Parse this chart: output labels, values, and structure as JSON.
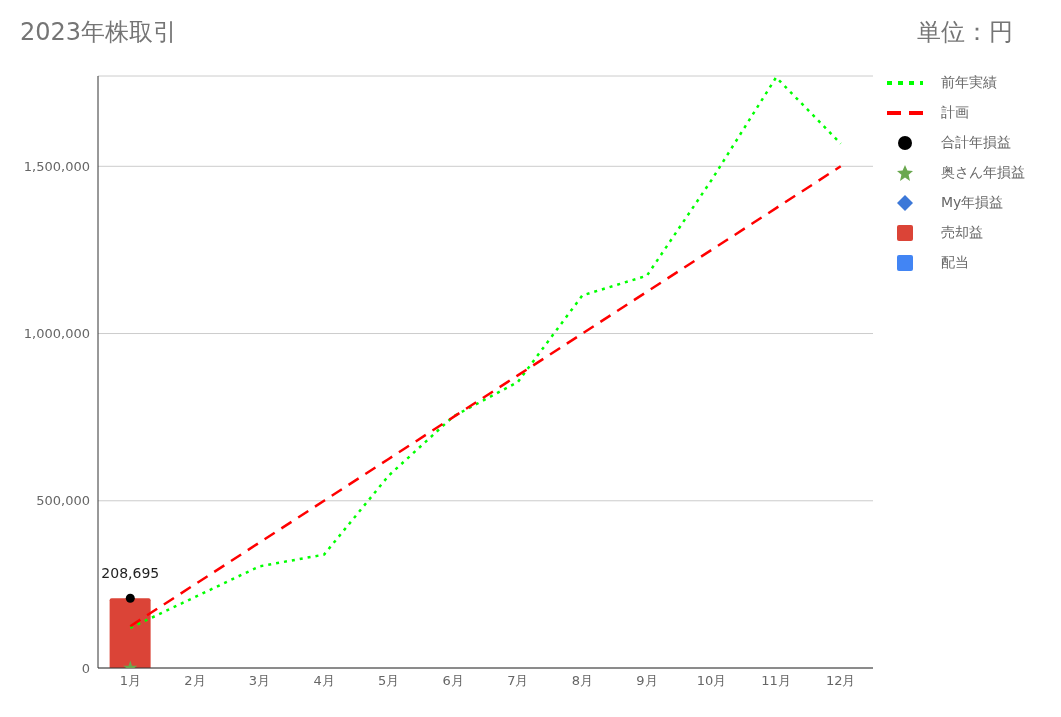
{
  "chart_data": {
    "type": "bar",
    "title": "2023年株取引",
    "annotations": [
      "単位：円"
    ],
    "categories": [
      "1月",
      "2月",
      "3月",
      "4月",
      "5月",
      "6月",
      "7月",
      "8月",
      "9月",
      "10月",
      "11月",
      "12月"
    ],
    "series": [
      {
        "name": "前年実績",
        "type": "line",
        "color": "#00ff00",
        "line_style": "dotted",
        "marker": "none",
        "values": [
          120000,
          212000,
          304000,
          339000,
          575000,
          752000,
          855000,
          1114000,
          1173000,
          1459000,
          1766000,
          1568000
        ]
      },
      {
        "name": "計画",
        "type": "line",
        "color": "#ff0000",
        "line_style": "dashed",
        "marker": "none",
        "values": [
          125000,
          250000,
          375000,
          500000,
          625000,
          750000,
          875000,
          1000000,
          1125000,
          1250000,
          1375000,
          1500000
        ]
      },
      {
        "name": "合計年損益",
        "type": "scatter",
        "color": "#000000",
        "marker": "circle",
        "values": [
          208695,
          null,
          null,
          null,
          null,
          null,
          null,
          null,
          null,
          null,
          null,
          null
        ],
        "value_labels": [
          "208,695",
          null,
          null,
          null,
          null,
          null,
          null,
          null,
          null,
          null,
          null,
          null
        ]
      },
      {
        "name": "奥さん年損益",
        "type": "scatter",
        "color": "#6aa84f",
        "marker": "star",
        "values": [
          0,
          null,
          null,
          null,
          null,
          null,
          null,
          null,
          null,
          null,
          null,
          null
        ]
      },
      {
        "name": "My年損益",
        "type": "scatter",
        "color": "#3c78d8",
        "marker": "diamond",
        "values": [
          null,
          null,
          null,
          null,
          null,
          null,
          null,
          null,
          null,
          null,
          null,
          null
        ]
      },
      {
        "name": "売却益",
        "color": "#db4437",
        "values": [
          208695,
          null,
          null,
          null,
          null,
          null,
          null,
          null,
          null,
          null,
          null,
          null
        ]
      },
      {
        "name": "配当",
        "color": "#4285f4",
        "values": [
          0,
          null,
          null,
          null,
          null,
          null,
          null,
          null,
          null,
          null,
          null,
          null
        ]
      }
    ],
    "stacked": true,
    "ylim": [
      0,
      1770000
    ],
    "yticks": [
      {
        "value": 0,
        "label": "0"
      },
      {
        "value": 500000,
        "label": "500,000"
      },
      {
        "value": 1000000,
        "label": "1,000,000"
      },
      {
        "value": 1500000,
        "label": "1,500,000"
      }
    ],
    "grid": "y",
    "legend": "right"
  }
}
